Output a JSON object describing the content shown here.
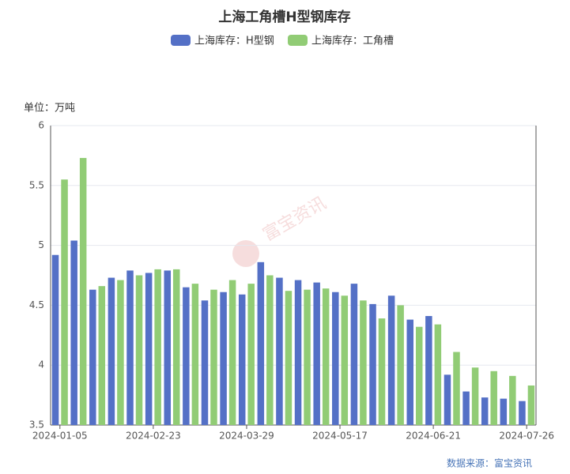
{
  "chart_data": {
    "type": "bar",
    "title": "上海工角槽H型钢库存",
    "y_axis_label": "单位：万吨",
    "source": "数据来源：富宝资讯",
    "watermark": "富宝资讯",
    "categories": [
      "2024-01-05",
      null,
      null,
      null,
      null,
      "2024-02-23",
      null,
      null,
      null,
      null,
      "2024-03-29",
      null,
      null,
      null,
      null,
      "2024-05-17",
      null,
      null,
      null,
      null,
      "2024-06-21",
      null,
      null,
      null,
      null,
      "2024-07-26"
    ],
    "series": [
      {
        "name": "上海库存：H型钢",
        "color": "#5470c6",
        "values": [
          4.92,
          5.04,
          4.63,
          4.73,
          4.79,
          4.77,
          4.79,
          4.65,
          4.54,
          4.61,
          4.59,
          4.86,
          4.73,
          4.71,
          4.69,
          4.61,
          4.68,
          4.51,
          4.58,
          4.38,
          4.41,
          3.92,
          3.78,
          3.73,
          3.72,
          3.7
        ]
      },
      {
        "name": "上海库存：工角槽",
        "color": "#91cc75",
        "values": [
          5.55,
          5.73,
          4.66,
          4.71,
          4.75,
          4.8,
          4.8,
          4.68,
          4.63,
          4.71,
          4.68,
          4.75,
          4.62,
          4.63,
          4.64,
          4.58,
          4.54,
          4.39,
          4.5,
          4.32,
          4.34,
          4.11,
          3.98,
          3.95,
          3.91,
          3.83
        ]
      }
    ],
    "ylim": [
      3.5,
      6
    ],
    "yticks": [
      3.5,
      4,
      4.5,
      5,
      5.5,
      6
    ],
    "grid": true,
    "legend": "top"
  }
}
